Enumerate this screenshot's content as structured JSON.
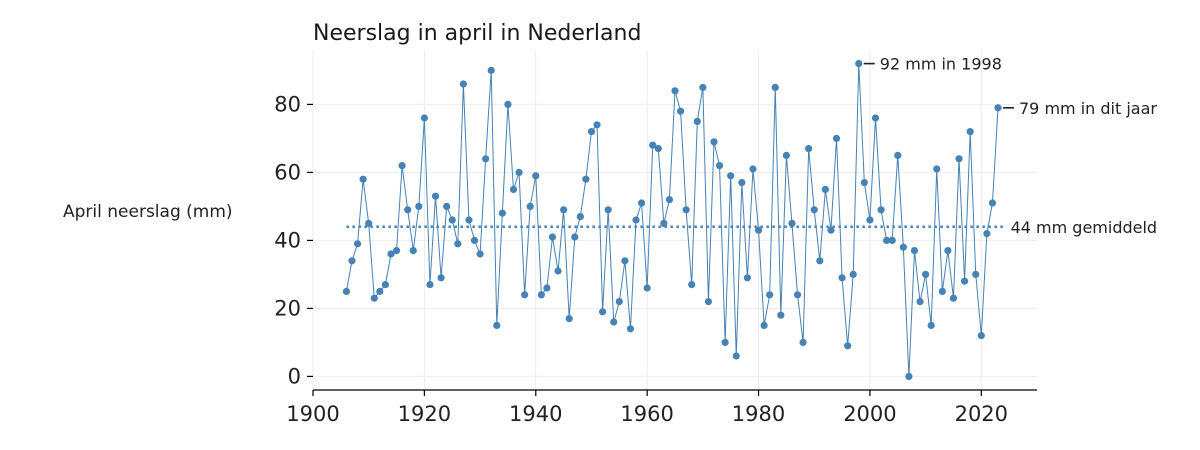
{
  "chart_data": {
    "type": "line",
    "title": "Neerslag in april in Nederland",
    "ylabel": "April neerslag (mm)",
    "xlabel": "",
    "xlim": [
      1900,
      2030
    ],
    "ylim": [
      -4,
      96
    ],
    "xticks": [
      1900,
      1920,
      1940,
      1960,
      1980,
      2000,
      2020
    ],
    "yticks": [
      0,
      20,
      40,
      60,
      80
    ],
    "grid": true,
    "colors": {
      "series": "#4682b4",
      "grid": "#ebebeb",
      "axis": "#000000"
    },
    "series": [
      {
        "x": [
          1906,
          1907,
          1908,
          1909,
          1910,
          1911,
          1912,
          1913,
          1914,
          1915,
          1916,
          1917,
          1918,
          1919,
          1920,
          1921,
          1922,
          1923,
          1924,
          1925,
          1926,
          1927,
          1928,
          1929,
          1930,
          1931,
          1932,
          1933,
          1934,
          1935,
          1936,
          1937,
          1938,
          1939,
          1940,
          1941,
          1942,
          1943,
          1944,
          1945,
          1946,
          1947,
          1948,
          1949,
          1950,
          1951,
          1952,
          1953,
          1954,
          1955,
          1956,
          1957,
          1958,
          1959,
          1960,
          1961,
          1962,
          1963,
          1964,
          1965,
          1966,
          1967,
          1968,
          1969,
          1970,
          1971,
          1972,
          1973,
          1974,
          1975,
          1976,
          1977,
          1978,
          1979,
          1980,
          1981,
          1982,
          1983,
          1984,
          1985,
          1986,
          1987,
          1988,
          1989,
          1990,
          1991,
          1992,
          1993,
          1994,
          1995,
          1996,
          1997,
          1998,
          1999,
          2000,
          2001,
          2002,
          2003,
          2004,
          2005,
          2006,
          2007,
          2008,
          2009,
          2010,
          2011,
          2012,
          2013,
          2014,
          2015,
          2016,
          2017,
          2018,
          2019,
          2020,
          2021,
          2022,
          2023
        ],
        "values": [
          25,
          34,
          39,
          58,
          45,
          23,
          25,
          27,
          36,
          37,
          62,
          49,
          37,
          50,
          76,
          27,
          53,
          29,
          50,
          46,
          39,
          86,
          46,
          40,
          36,
          64,
          90,
          15,
          48,
          80,
          55,
          60,
          24,
          50,
          59,
          24,
          26,
          41,
          31,
          49,
          17,
          41,
          47,
          58,
          72,
          74,
          19,
          49,
          16,
          22,
          34,
          14,
          46,
          51,
          26,
          68,
          67,
          45,
          52,
          84,
          78,
          49,
          27,
          75,
          85,
          22,
          69,
          62,
          10,
          59,
          6,
          57,
          29,
          61,
          43,
          15,
          24,
          85,
          18,
          65,
          45,
          24,
          10,
          67,
          49,
          34,
          55,
          43,
          70,
          29,
          9,
          30,
          92,
          57,
          46,
          76,
          49,
          40,
          40,
          65,
          38,
          0,
          37,
          22,
          30,
          15,
          61,
          25,
          37,
          23,
          64,
          28,
          72,
          30,
          12,
          42,
          51,
          79
        ]
      }
    ],
    "mean": {
      "value": 44,
      "x_start": 1906,
      "x_end": 2024,
      "label": "44 mm gemiddeld"
    },
    "annotations": [
      {
        "x": 1998,
        "y": 92,
        "text": "92 mm in 1998"
      },
      {
        "x": 2023,
        "y": 79,
        "text": "79 mm in dit jaar"
      }
    ]
  }
}
